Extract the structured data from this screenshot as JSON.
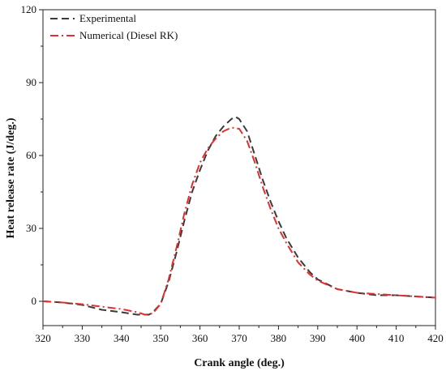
{
  "chart_data": {
    "type": "line",
    "xlabel": "Crank angle (deg.)",
    "ylabel": "Heat release rate (J/deg.)",
    "xlim": [
      320,
      420
    ],
    "ylim": [
      -10,
      120
    ],
    "xticks": [
      320,
      330,
      340,
      350,
      360,
      370,
      380,
      390,
      400,
      410,
      420
    ],
    "yticks": [
      0,
      30,
      60,
      90,
      120
    ],
    "grid": false,
    "legend_position": "top-left",
    "series": [
      {
        "name": "Experimental",
        "color": "#3a3a3a",
        "style": "dashed",
        "x": [
          320,
          325,
          330,
          335,
          340,
          344,
          347,
          348,
          350,
          352,
          354,
          356,
          358,
          360,
          362,
          364,
          366,
          368,
          369,
          370,
          372,
          374,
          376,
          378,
          380,
          382,
          385,
          388,
          390,
          395,
          400,
          405,
          410,
          415,
          420
        ],
        "y": [
          0,
          -0.5,
          -1.5,
          -3.5,
          -4.5,
          -5.5,
          -5.5,
          -4.5,
          -1,
          8,
          20,
          33,
          45,
          54,
          62,
          68,
          72,
          75,
          76,
          75,
          70,
          60,
          50,
          41,
          33,
          26,
          18,
          12,
          9,
          5,
          3.5,
          2.5,
          2.5,
          2,
          1.5
        ]
      },
      {
        "name": "Numerical (Diesel RK)",
        "color": "#e03030",
        "style": "dash-dot",
        "x": [
          320,
          325,
          330,
          335,
          340,
          344,
          346,
          348,
          350,
          352,
          354,
          356,
          358,
          360,
          362,
          364,
          366,
          368,
          370,
          372,
          374,
          376,
          378,
          380,
          382,
          385,
          388,
          390,
          395,
          400,
          405,
          410,
          415,
          420
        ],
        "y": [
          0,
          -0.5,
          -1.2,
          -2.2,
          -3.2,
          -4.5,
          -5.5,
          -5,
          -1,
          9,
          22,
          36,
          48,
          57,
          63,
          67,
          70,
          71.5,
          71,
          66,
          57,
          47,
          38,
          30,
          24,
          16,
          11,
          8.5,
          5,
          3.5,
          3,
          2.5,
          2,
          1.5
        ]
      }
    ]
  }
}
